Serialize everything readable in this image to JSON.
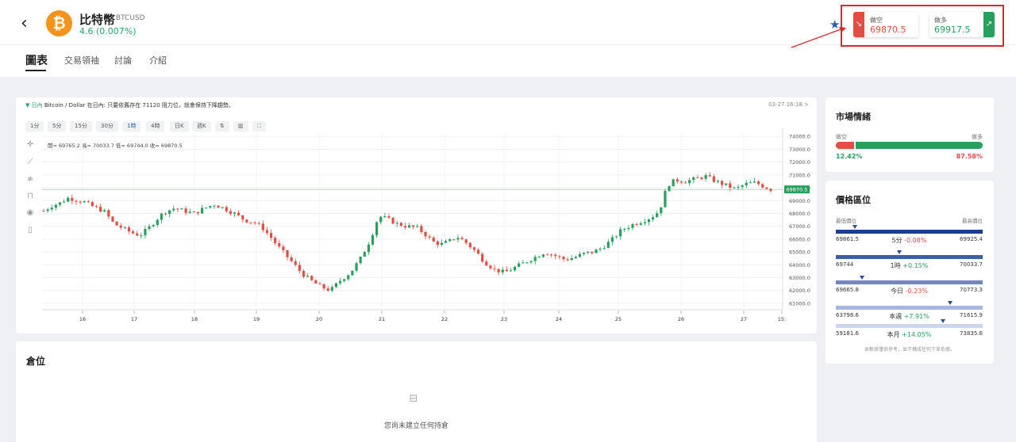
{
  "header": {
    "back_icon": "chevron-left-icon",
    "coin_logo": "₿",
    "coin_name": "比特幣",
    "coin_pair": "| BTCUSD",
    "coin_change": "4.6 (0.007%)",
    "favorite_icon": "star-icon",
    "trade": {
      "short_label": "做空",
      "short_price": "69870.5",
      "short_arrow": "↘",
      "long_label": "做多",
      "long_price": "69917.5",
      "long_arrow": "↗"
    }
  },
  "tabs": [
    {
      "label": "圖表",
      "active": true
    },
    {
      "label": "交易領袖",
      "active": false
    },
    {
      "label": "討論",
      "active": false
    },
    {
      "label": "介紹",
      "active": false
    }
  ],
  "chart_panel": {
    "info_marker": "▼",
    "info_period": "日內",
    "info_text": "Bitcoin / Dollar 在日內: 只要依舊存在 71120 阻力位，就會保持下降趨勢。",
    "date": "03-27 16:18 >",
    "intervals": [
      {
        "label": "1分",
        "active": false
      },
      {
        "label": "5分",
        "active": false
      },
      {
        "label": "15分",
        "active": false
      },
      {
        "label": "30分",
        "active": false
      },
      {
        "label": "1時",
        "active": true
      },
      {
        "label": "4時",
        "active": false
      },
      {
        "label": "日K",
        "active": false
      },
      {
        "label": "週K",
        "active": false
      },
      {
        "label": "⇅",
        "active": false
      },
      {
        "label": "▥",
        "active": false
      },
      {
        "label": "⛶",
        "active": false
      }
    ],
    "ohlc": "開= 69765.2  高= 70033.7  低= 69744.0  收= 69870.5",
    "tools": [
      "crosshair-icon",
      "trendline-icon",
      "fib-icon",
      "lock-icon",
      "eye-icon",
      "trash-icon"
    ]
  },
  "chart_data": {
    "type": "candlestick",
    "x_tick_labels": [
      "16",
      "17",
      "18",
      "19",
      "20",
      "21",
      "22",
      "23",
      "24",
      "25",
      "26",
      "27",
      "15:"
    ],
    "y_tick_labels": [
      "74000.0",
      "73000.0",
      "72000.0",
      "71000.0",
      "70000.0",
      "69000.0",
      "68000.0",
      "67000.0",
      "66000.0",
      "65000.0",
      "64000.0",
      "63000.0",
      "62000.0",
      "61000.0"
    ],
    "ylim": [
      60500,
      74200
    ],
    "current_price": 69870.5,
    "current_price_label": "69870.5",
    "path": [
      [
        0,
        68200
      ],
      [
        8,
        68600
      ],
      [
        16,
        68800
      ],
      [
        24,
        69200
      ],
      [
        30,
        69100
      ],
      [
        40,
        68900
      ],
      [
        50,
        68500
      ],
      [
        60,
        68200
      ],
      [
        70,
        67200
      ],
      [
        80,
        66800
      ],
      [
        88,
        66500
      ],
      [
        96,
        66300
      ],
      [
        104,
        66800
      ],
      [
        112,
        67500
      ],
      [
        120,
        68100
      ],
      [
        130,
        68400
      ],
      [
        140,
        68200
      ],
      [
        150,
        68000
      ],
      [
        160,
        68400
      ],
      [
        170,
        68700
      ],
      [
        180,
        68400
      ],
      [
        190,
        68000
      ],
      [
        200,
        67500
      ],
      [
        210,
        67300
      ],
      [
        218,
        66900
      ],
      [
        226,
        66200
      ],
      [
        234,
        65400
      ],
      [
        242,
        64700
      ],
      [
        250,
        64000
      ],
      [
        258,
        63300
      ],
      [
        266,
        62800
      ],
      [
        276,
        62300
      ],
      [
        286,
        62000
      ],
      [
        296,
        62800
      ],
      [
        306,
        63400
      ],
      [
        316,
        64500
      ],
      [
        326,
        66000
      ],
      [
        334,
        67800
      ],
      [
        342,
        67600
      ],
      [
        352,
        67200
      ],
      [
        362,
        67000
      ],
      [
        372,
        66900
      ],
      [
        380,
        66400
      ],
      [
        388,
        65800
      ],
      [
        396,
        65600
      ],
      [
        404,
        65800
      ],
      [
        412,
        66200
      ],
      [
        420,
        65800
      ],
      [
        430,
        65100
      ],
      [
        440,
        64200
      ],
      [
        450,
        63600
      ],
      [
        460,
        63400
      ],
      [
        470,
        63800
      ],
      [
        480,
        64200
      ],
      [
        490,
        64600
      ],
      [
        500,
        65000
      ],
      [
        510,
        64700
      ],
      [
        520,
        64400
      ],
      [
        530,
        64600
      ],
      [
        540,
        64900
      ],
      [
        548,
        65000
      ],
      [
        556,
        65300
      ],
      [
        566,
        65900
      ],
      [
        576,
        66700
      ],
      [
        586,
        67100
      ],
      [
        596,
        67400
      ],
      [
        606,
        67700
      ],
      [
        614,
        68200
      ],
      [
        622,
        70200
      ],
      [
        630,
        70600
      ],
      [
        640,
        70500
      ],
      [
        650,
        70700
      ],
      [
        660,
        70900
      ],
      [
        670,
        70500
      ],
      [
        680,
        70200
      ],
      [
        690,
        69900
      ],
      [
        700,
        70300
      ],
      [
        710,
        70400
      ],
      [
        718,
        70100
      ],
      [
        725,
        69870
      ]
    ]
  },
  "positions": {
    "title": "倉位",
    "icon": "briefcase-icon",
    "empty_text": "您尚未建立任何持倉"
  },
  "sentiment": {
    "title": "市場情緒",
    "short_label": "做空",
    "long_label": "做多",
    "short_pct": 12.42,
    "short_pct_text": "12.42%",
    "long_pct_text": "87.58%",
    "short_color": "#e44e42",
    "long_color": "#27a05e"
  },
  "price_range": {
    "title": "價格區位",
    "low_label": "最低價位",
    "high_label": "最高價位",
    "rows": [
      {
        "low": "69861.5",
        "period": "5分",
        "change": "-0.08%",
        "positive": false,
        "marker": 0.13,
        "color": "#1f3d8f"
      },
      {
        "low": "69744",
        "period": "1時",
        "change": "+0.15%",
        "positive": true,
        "marker": 0.43,
        "color": "#3e5ea6"
      },
      {
        "low": "69665.8",
        "period": "今日",
        "change": "-0.23%",
        "positive": false,
        "marker": 0.18,
        "color": "#7088c0"
      },
      {
        "low": "63798.6",
        "period": "本週",
        "change": "+7.91%",
        "positive": true,
        "marker": 0.78,
        "color": "#a8b8dc"
      },
      {
        "low": "59181.6",
        "period": "本月",
        "change": "+14.05%",
        "positive": true,
        "marker": 0.73,
        "color": "#cdd6ea"
      }
    ],
    "highs": [
      "69925.4",
      "70033.7",
      "70773.3",
      "71615.9",
      "73835.6"
    ],
    "note": "本數據僅供參考，並不構成任何下單依據。"
  }
}
